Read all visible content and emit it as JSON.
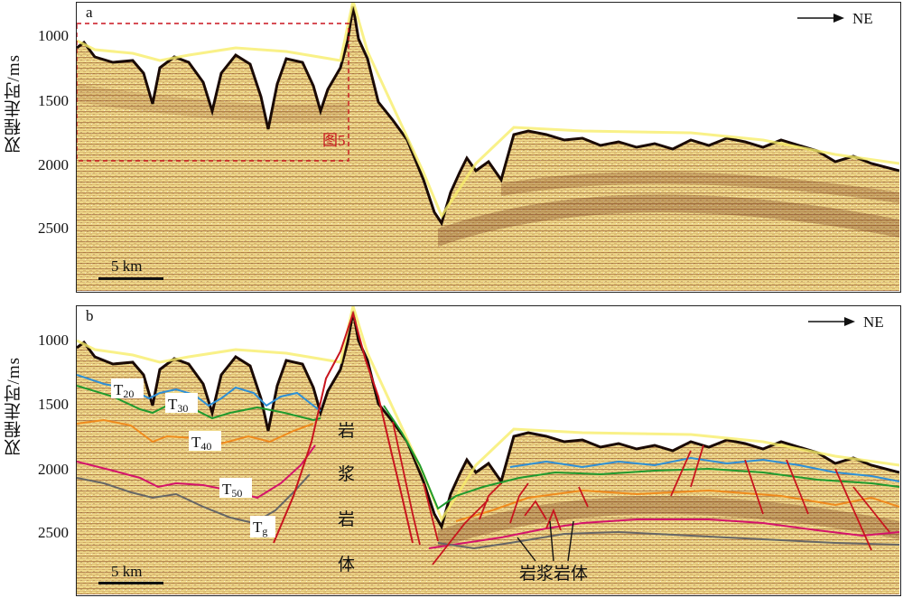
{
  "y_axis_title": "双程走时/ms",
  "direction_label": "NE",
  "scale_bar_label": "5 km",
  "panel_a": {
    "letter": "a",
    "ticks": [
      "1000",
      "1500",
      "2000",
      "2500"
    ],
    "box_label": "图5"
  },
  "panel_b": {
    "letter": "b",
    "ticks": [
      "1000",
      "1500",
      "2000",
      "2500"
    ],
    "horizons": [
      {
        "name": "T",
        "sub": "20",
        "color": "#2e8fd6"
      },
      {
        "name": "T",
        "sub": "30",
        "color": "#1f9a2e"
      },
      {
        "name": "T",
        "sub": "40",
        "color": "#f08a1c"
      },
      {
        "name": "T",
        "sub": "50",
        "color": "#d4136b"
      },
      {
        "name": "T",
        "sub": "g",
        "color": "#666666"
      }
    ],
    "magma_main": [
      "岩",
      "浆",
      "岩",
      "体"
    ],
    "magma_label": "岩浆岩体"
  },
  "colors": {
    "seismic_base": "#efd98a",
    "reflector_dark": "#7a2a10",
    "fault": "#c8141e",
    "box": "#c8141e"
  }
}
